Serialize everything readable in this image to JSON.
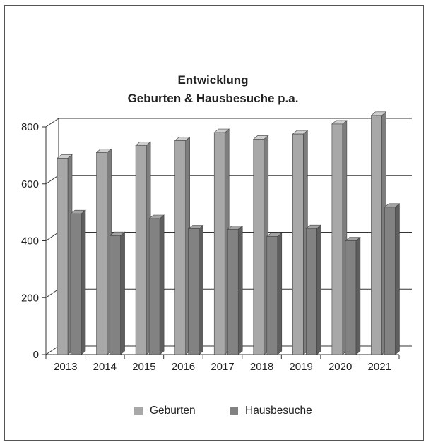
{
  "chart_data": {
    "type": "bar",
    "title_lines": [
      "Entwicklung",
      "Geburten & Hausbesuche p.a."
    ],
    "xlabel": "",
    "ylabel": "",
    "categories": [
      "2013",
      "2014",
      "2015",
      "2016",
      "2017",
      "2018",
      "2019",
      "2020",
      "2021"
    ],
    "series": [
      {
        "name": "Geburten",
        "color": "#a8a8a8",
        "side_color": "#7d7d7d",
        "top_color": "#cfcfcf",
        "values": [
          690,
          710,
          735,
          752,
          780,
          757,
          775,
          810,
          840
        ]
      },
      {
        "name": "Hausbesuche",
        "color": "#828282",
        "side_color": "#5e5e5e",
        "top_color": "#a3a3a3",
        "values": [
          495,
          418,
          478,
          442,
          440,
          415,
          443,
          400,
          518
        ]
      }
    ],
    "ylim": [
      0,
      800
    ],
    "yticks": [
      0,
      200,
      400,
      600,
      800
    ],
    "grid": true,
    "legend_position": "bottom",
    "style": "3d-bar"
  }
}
